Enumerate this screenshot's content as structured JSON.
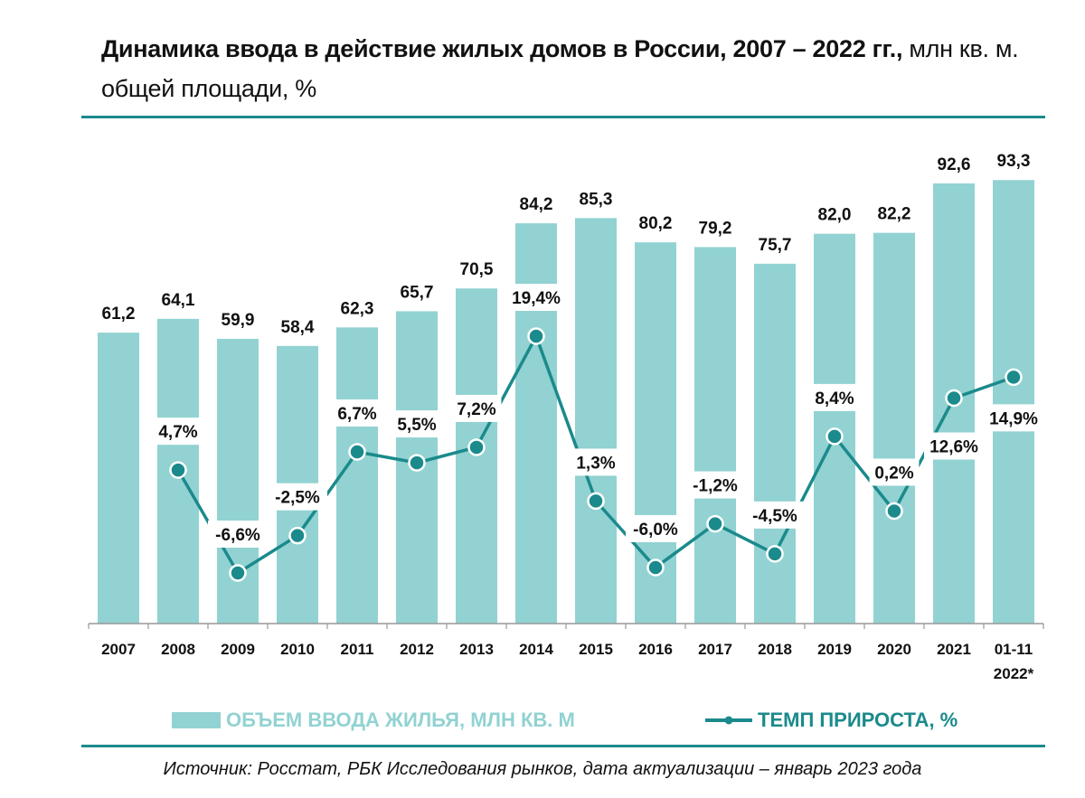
{
  "header": {
    "title_bold": "Динамика ввода в действие жилых домов в России, 2007 – 2022 гг.,",
    "title_rest": " млн кв. м. общей площади, %"
  },
  "colors": {
    "bar": "#92d2d2",
    "line": "#1b8a8c",
    "axis": "#999999"
  },
  "chart_data": {
    "type": "bar",
    "categories": [
      "2007",
      "2008",
      "2009",
      "2010",
      "2011",
      "2012",
      "2013",
      "2014",
      "2015",
      "2016",
      "2017",
      "2018",
      "2019",
      "2020",
      "2021",
      "01-11 2022*"
    ],
    "series": [
      {
        "name": "ОБЪЕМ ВВОДА ЖИЛЬЯ, МЛН КВ. М",
        "type": "bar",
        "values": [
          61.2,
          64.1,
          59.9,
          58.4,
          62.3,
          65.7,
          70.5,
          84.2,
          85.3,
          80.2,
          79.2,
          75.7,
          82.0,
          82.2,
          92.6,
          93.3
        ],
        "labels": [
          "61,2",
          "64,1",
          "59,9",
          "58,4",
          "62,3",
          "65,7",
          "70,5",
          "84,2",
          "85,3",
          "80,2",
          "79,2",
          "75,7",
          "82,0",
          "82,2",
          "92,6",
          "93,3"
        ]
      },
      {
        "name": "ТЕМП ПРИРОСТА, %",
        "type": "line",
        "values": [
          null,
          4.7,
          -6.6,
          -2.5,
          6.7,
          5.5,
          7.2,
          19.4,
          1.3,
          -6.0,
          -1.2,
          -4.5,
          8.4,
          0.2,
          12.6,
          14.9
        ],
        "labels": [
          "",
          "4,7%",
          "-6,6%",
          "-2,5%",
          "6,7%",
          "5,5%",
          "7,2%",
          "19,4%",
          "1,3%",
          "-6,0%",
          "-1,2%",
          "-4,5%",
          "8,4%",
          "0,2%",
          "12,6%",
          "14,9%"
        ]
      }
    ],
    "ylim": [
      0,
      100
    ],
    "y2lim": [
      -9,
      37
    ],
    "grid": false,
    "legend": "bottom"
  },
  "footer": {
    "source": "Источник: Росстат, РБК Исследования рынков, дата актуализации – январь 2023 года"
  }
}
